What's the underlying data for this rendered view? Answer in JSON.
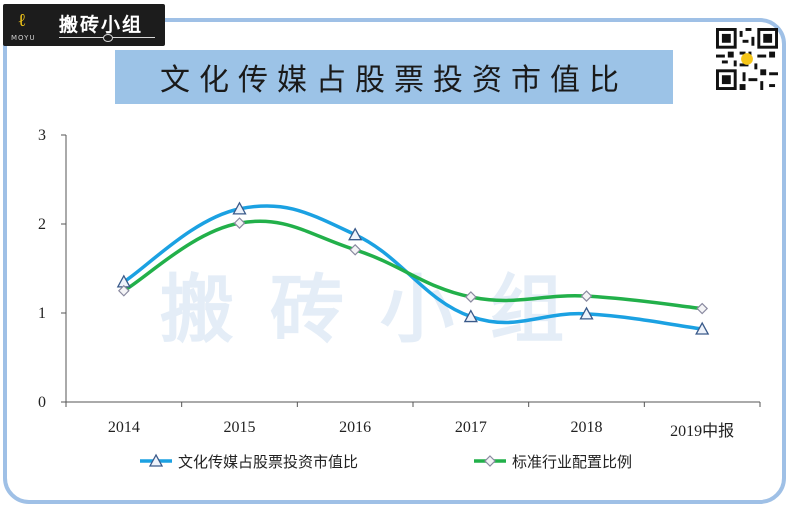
{
  "logo": {
    "name": "搬砖小组",
    "sub": "MOYU"
  },
  "header": {
    "title": "文化传媒占股票投资市值比"
  },
  "watermark": "搬砖小组",
  "colors": {
    "series1": "#1ba1e2",
    "series2": "#22b04a",
    "title_bg": "#9cc3e7",
    "frame": "#9fc0e6"
  },
  "chart_data": {
    "type": "line",
    "categories": [
      "2014",
      "2015",
      "2016",
      "2017",
      "2018",
      "2019中报"
    ],
    "series": [
      {
        "name": "文化传媒占股票投资市值比",
        "values": [
          1.35,
          2.17,
          1.88,
          0.96,
          0.99,
          0.82
        ],
        "marker": "triangle"
      },
      {
        "name": "标准行业配置比例",
        "values": [
          1.25,
          2.01,
          1.71,
          1.18,
          1.19,
          1.05
        ],
        "marker": "diamond"
      }
    ],
    "ylim": [
      0,
      3
    ],
    "yticks": [
      "0",
      "1",
      "2",
      "3"
    ],
    "smooth": true,
    "grid": false,
    "legend_position": "bottom"
  }
}
